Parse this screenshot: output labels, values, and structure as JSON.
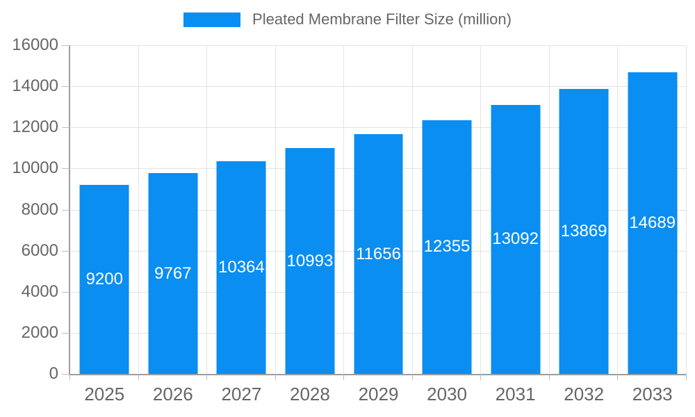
{
  "chart_data": {
    "type": "bar",
    "title": "Pleated Membrane Filter Size (million)",
    "legend": {
      "label": "Pleated Membrane Filter Size (million)",
      "position": "top-center"
    },
    "categories": [
      "2025",
      "2026",
      "2027",
      "2028",
      "2029",
      "2030",
      "2031",
      "2032",
      "2033"
    ],
    "values": [
      9200,
      9767,
      10364,
      10993,
      11656,
      12355,
      13092,
      13869,
      14689
    ],
    "xlabel": "",
    "ylabel": "",
    "ylim": [
      0,
      16000
    ],
    "ytick_step": 2000,
    "ytick_labels": [
      "0",
      "2000",
      "4000",
      "6000",
      "8000",
      "10000",
      "12000",
      "14000",
      "16000"
    ],
    "grid": true,
    "data_labels": "inside-center-white",
    "colors": {
      "bar": "#0a8ef2",
      "bar_label_text": "#ffffff",
      "axis_text": "#666666",
      "gridline": "#e3e3e3",
      "axis_line": "#9c9c9c",
      "tick_mark": "#bdbdbd",
      "background": "#ffffff"
    }
  }
}
